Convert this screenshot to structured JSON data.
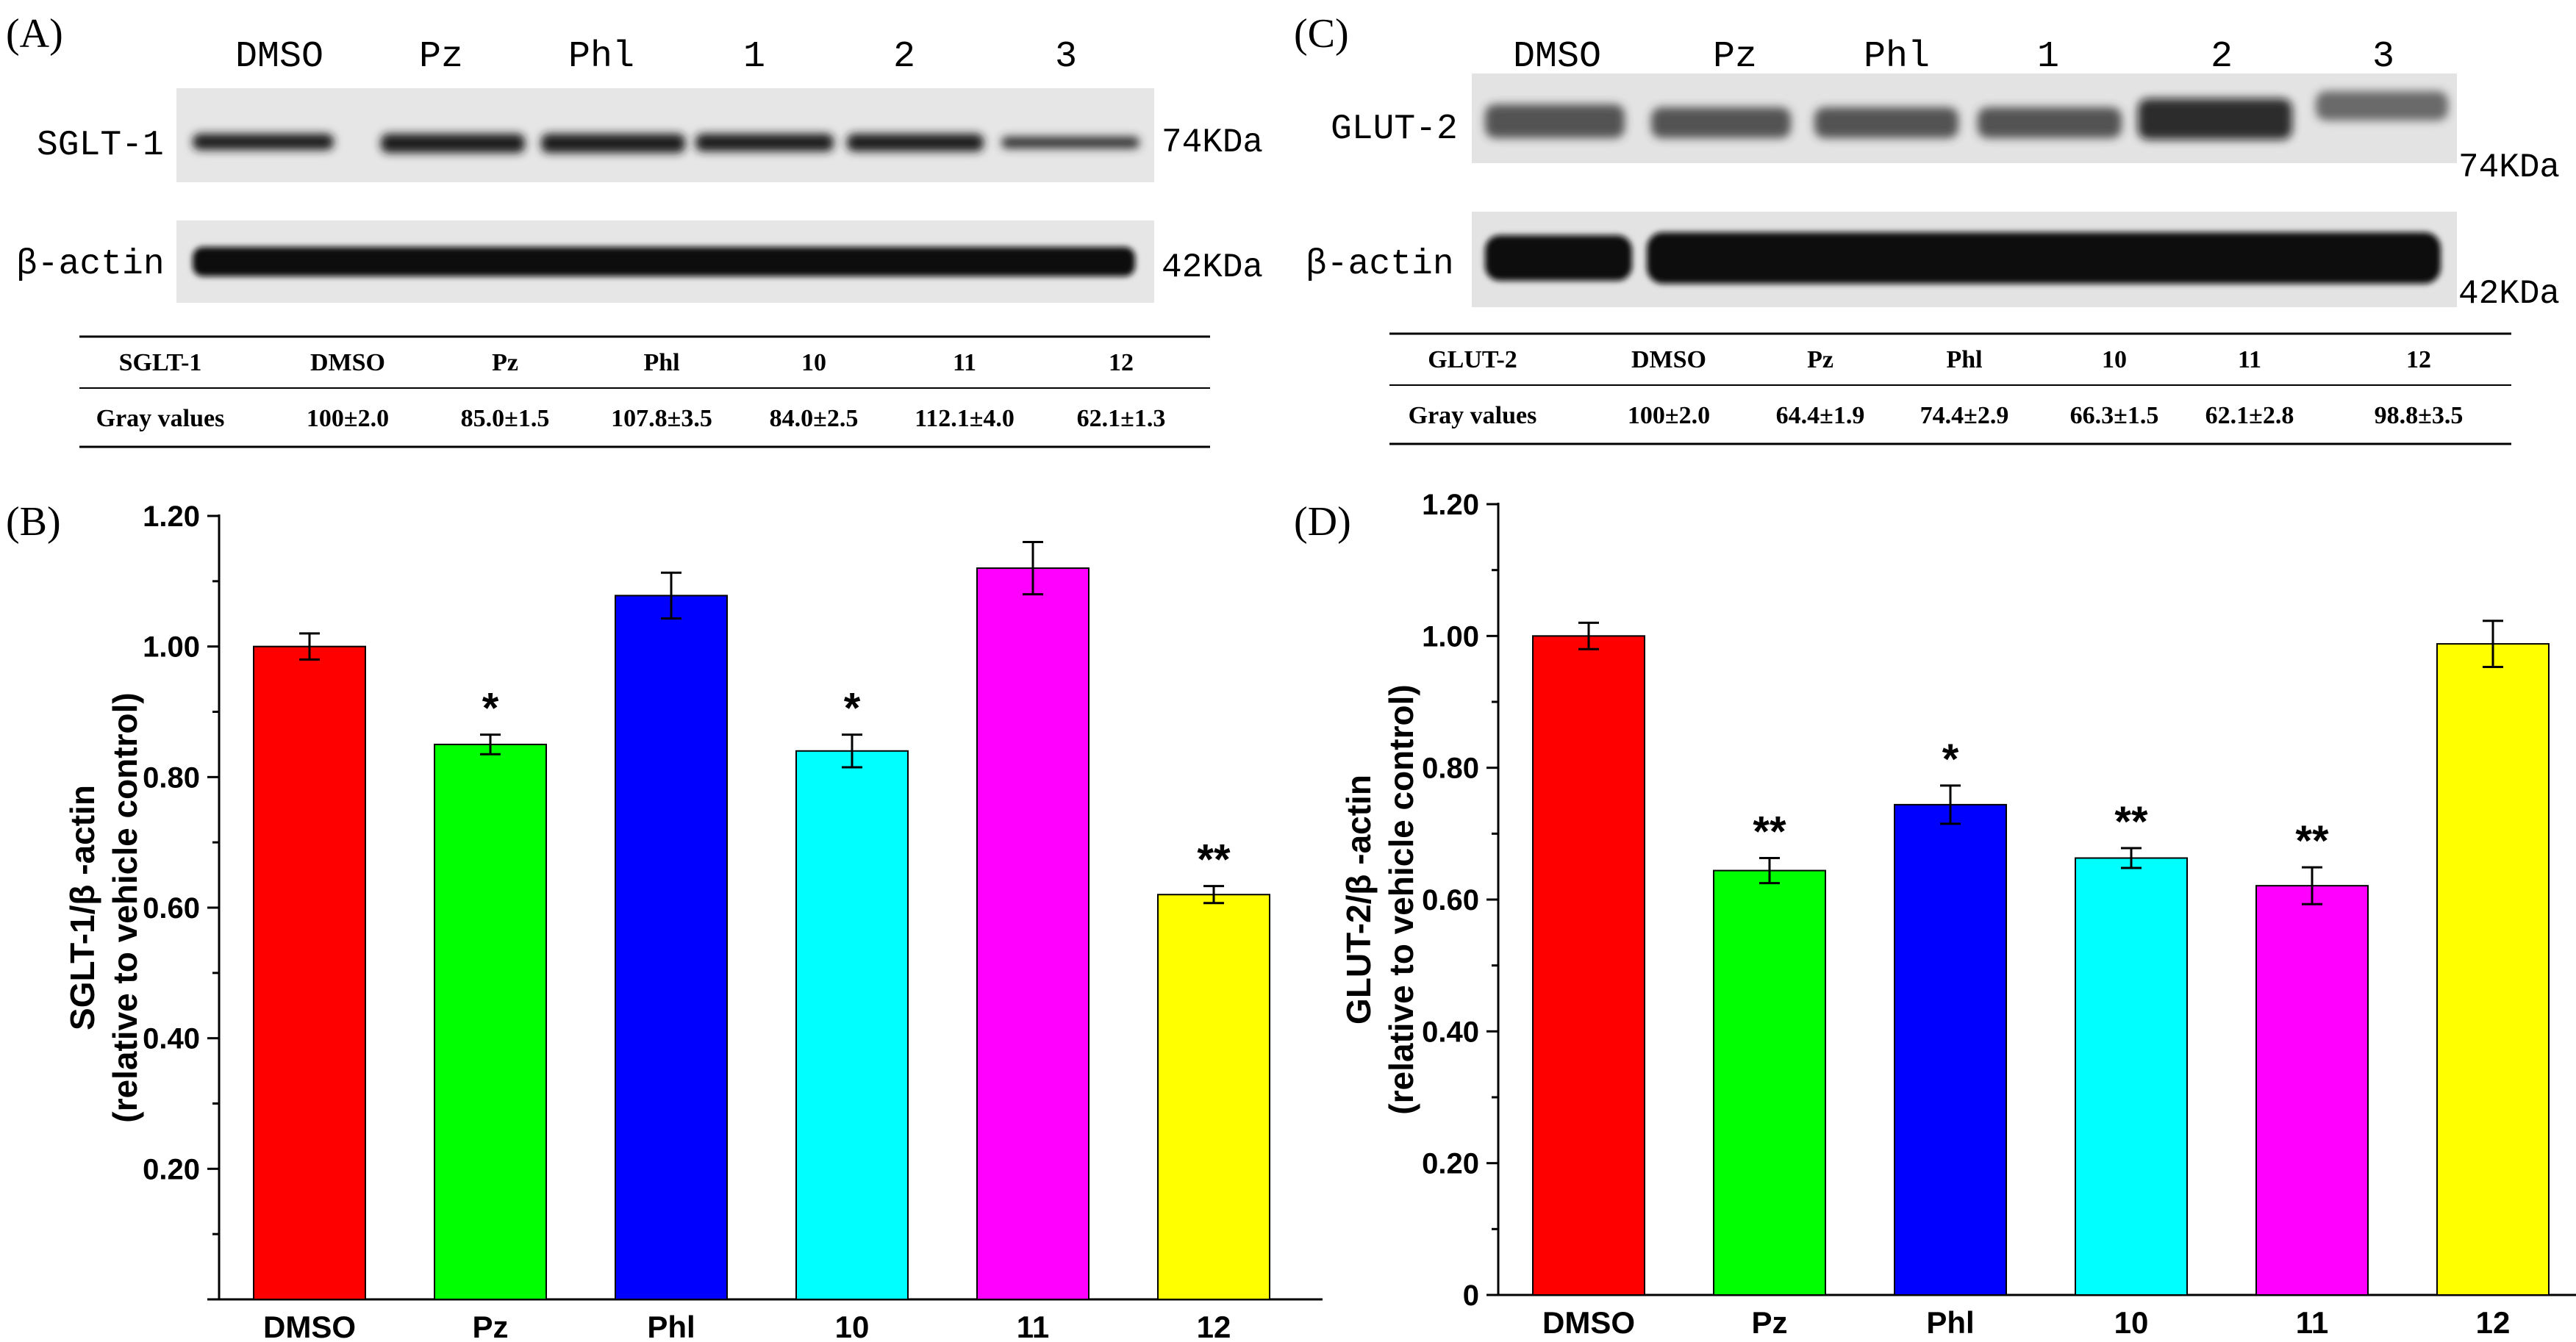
{
  "panels": {
    "A": {
      "letter": "(A)",
      "lanes": [
        "DMSO",
        "Pz",
        "Phl",
        "1",
        "2",
        "3"
      ],
      "blots": [
        {
          "protein": "SGLT-1",
          "mw": "74KDa"
        },
        {
          "protein": "β-actin",
          "mw": "42KDa"
        }
      ],
      "table": {
        "header": [
          "SGLT-1",
          "DMSO",
          "Pz",
          "Phl",
          "10",
          "11",
          "12"
        ],
        "row": [
          "Gray values",
          "100±2.0",
          "85.0±1.5",
          "107.8±3.5",
          "84.0±2.5",
          "112.1±4.0",
          "62.1±1.3"
        ]
      }
    },
    "C": {
      "letter": "(C)",
      "lanes": [
        "DMSO",
        "Pz",
        "Phl",
        "1",
        "2",
        "3"
      ],
      "blots": [
        {
          "protein": "GLUT-2",
          "mw": "74KDa"
        },
        {
          "protein": "β-actin",
          "mw": "42KDa"
        }
      ],
      "table": {
        "header": [
          "GLUT-2",
          "DMSO",
          "Pz",
          "Phl",
          "10",
          "11",
          "12"
        ],
        "row": [
          "Gray values",
          "100±2.0",
          "64.4±1.9",
          "74.4±2.9",
          "66.3±1.5",
          "62.1±2.8",
          "98.8±3.5"
        ]
      }
    },
    "B": {
      "letter": "(B)"
    },
    "D": {
      "letter": "(D)"
    }
  },
  "colors": [
    "#ff0000",
    "#00ff00",
    "#0000ff",
    "#00ffff",
    "#ff00ff",
    "#ffff00"
  ],
  "chart_data": [
    {
      "panel": "B",
      "type": "bar",
      "categories": [
        "DMSO",
        "Pz",
        "Phl",
        "10",
        "11",
        "12"
      ],
      "values": [
        1.0,
        0.85,
        1.078,
        0.84,
        1.12,
        0.62
      ],
      "errors": [
        0.02,
        0.015,
        0.035,
        0.025,
        0.04,
        0.013
      ],
      "significance": [
        "",
        "*",
        "",
        "*",
        "",
        "**"
      ],
      "ylabel_line1": "SGLT-1/β -actin",
      "ylabel_line2": "(relative to vehicle control)",
      "yticks": [
        "0.20",
        "0.40",
        "0.60",
        "0.80",
        "1.00",
        "1.20"
      ],
      "ylim": [
        0.0,
        1.2
      ]
    },
    {
      "panel": "D",
      "type": "bar",
      "categories": [
        "DMSO",
        "Pz",
        "Phl",
        "10",
        "11",
        "12"
      ],
      "values": [
        1.0,
        0.644,
        0.744,
        0.663,
        0.621,
        0.988
      ],
      "errors": [
        0.02,
        0.019,
        0.029,
        0.015,
        0.028,
        0.035
      ],
      "significance": [
        "",
        "**",
        "*",
        "**",
        "**",
        ""
      ],
      "ylabel_line1": "GLUT-2/β -actin",
      "ylabel_line2": "(relative to vehicle control)",
      "yticks": [
        "0",
        "0.20",
        "0.40",
        "0.60",
        "0.80",
        "1.00",
        "1.20"
      ],
      "ylim": [
        0.0,
        1.2
      ]
    }
  ]
}
